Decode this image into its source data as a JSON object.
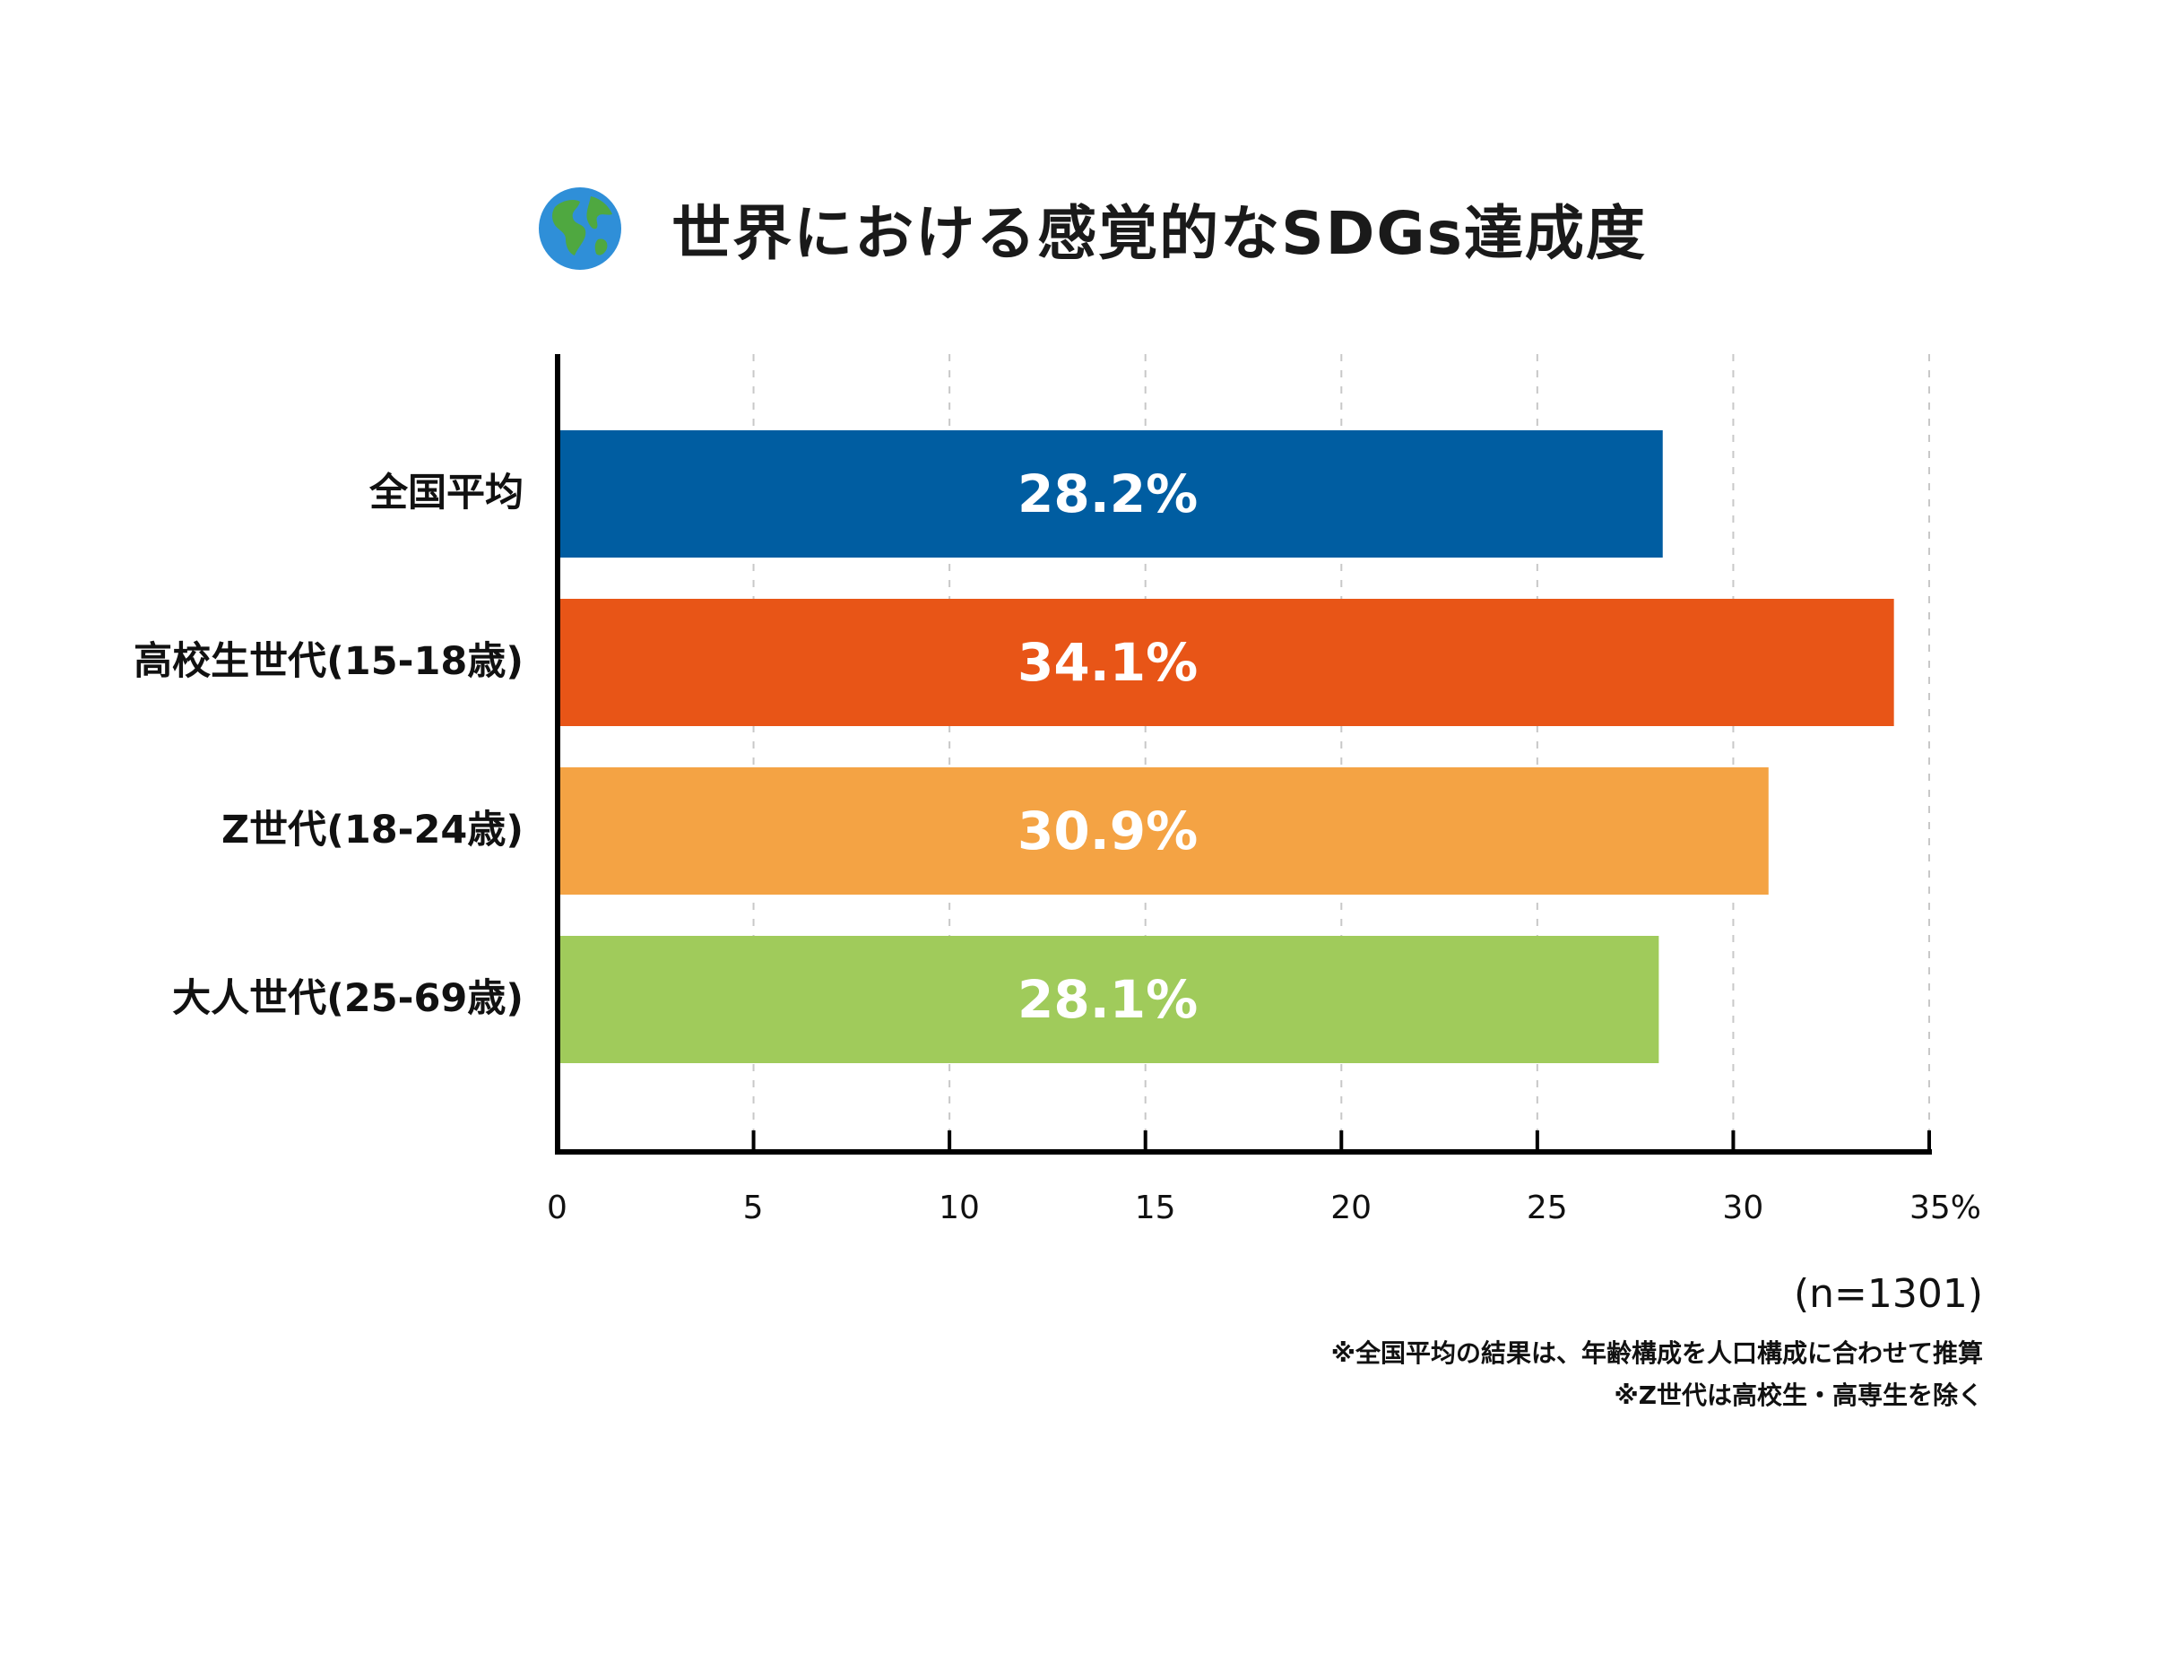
{
  "chart_data": {
    "type": "bar",
    "orientation": "horizontal",
    "title": "世界における感覚的なSDGs達成度",
    "title_icon": "globe-americas-icon",
    "categories": [
      "全国平均",
      "高校生世代(15-18歳)",
      "Z世代(18-24歳)",
      "大人世代(25-69歳)"
    ],
    "values": [
      28.2,
      34.1,
      30.9,
      28.1
    ],
    "value_labels": [
      "28.2%",
      "34.1%",
      "30.9%",
      "28.1%"
    ],
    "colors": [
      "#005da1",
      "#e85517",
      "#f4a344",
      "#a0cb5b"
    ],
    "x_ticks": [
      "0",
      "5",
      "10",
      "15",
      "20",
      "25",
      "30",
      "35%"
    ],
    "xlim": [
      0,
      35
    ],
    "grid": "vertical-dashed",
    "legend": "none"
  },
  "notes": {
    "sample": "(n=1301)",
    "footnote_1": "※全国平均の結果は、年齢構成を人口構成に合わせて推算",
    "footnote_2": "※Z世代は高校生・高専生を除く"
  }
}
